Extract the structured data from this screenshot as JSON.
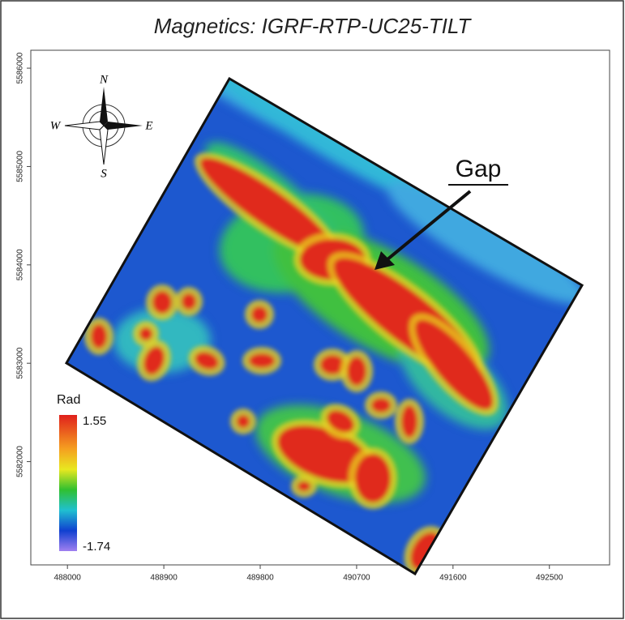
{
  "title": "Magnetics: IGRF-RTP-UC25-TILT",
  "compass": {
    "n": "N",
    "e": "E",
    "s": "S",
    "w": "W"
  },
  "annotation": "Gap",
  "legend": {
    "title": "Rad",
    "max": 1.55,
    "min": -1.74
  },
  "axes": {
    "xlim": [
      487658,
      493062
    ],
    "xticks": [
      488000,
      488900,
      489800,
      490700,
      491600,
      492500
    ],
    "ylim": [
      5580950,
      5586182
    ],
    "yticks": [
      5582000,
      5583000,
      5584000,
      5585000,
      5586000
    ]
  }
}
